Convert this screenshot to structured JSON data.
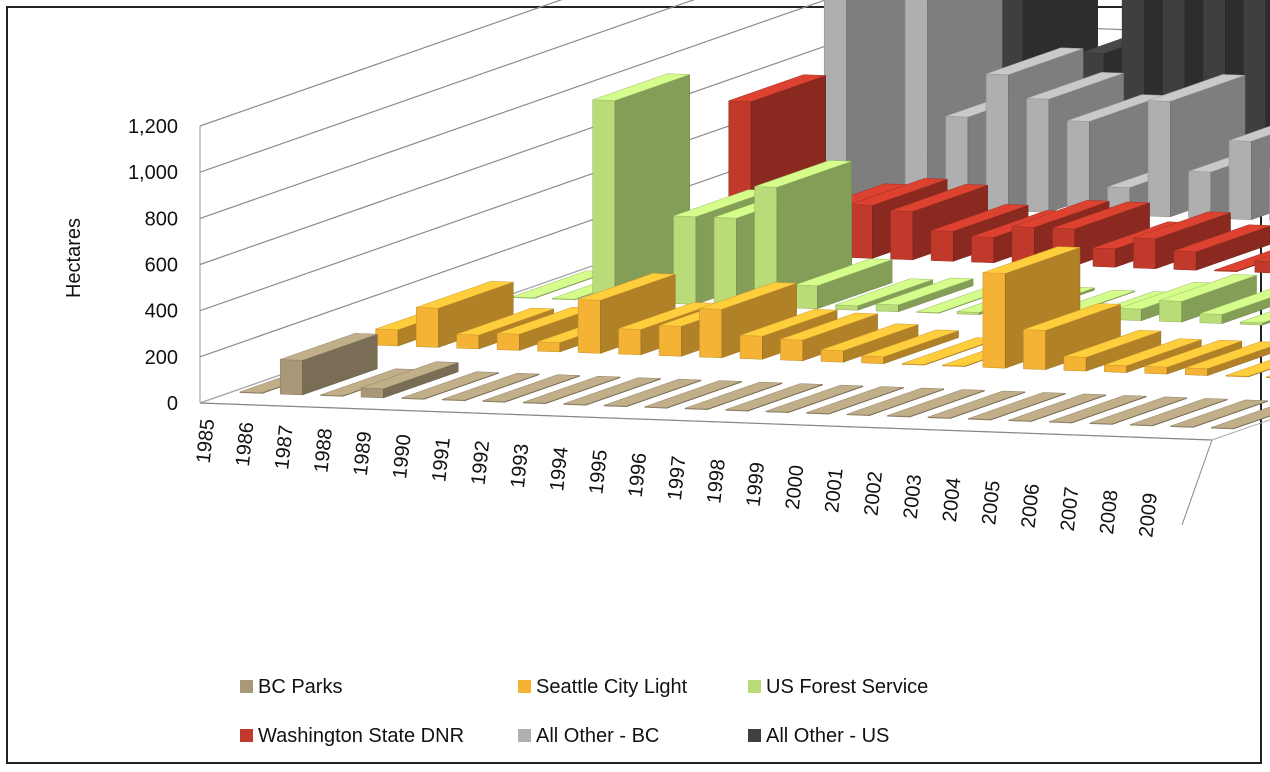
{
  "chart_data": {
    "type": "bar",
    "subtype": "3d-column",
    "title": "",
    "ylabel": "Hectares",
    "xlabel": "",
    "ylim": [
      0,
      1200
    ],
    "yticks": [
      0,
      200,
      400,
      600,
      800,
      1000,
      1200
    ],
    "ytick_labels": [
      "0",
      "200",
      "400",
      "600",
      "800",
      "1,000",
      "1,200"
    ],
    "grid": true,
    "legend_position": "bottom",
    "categories": [
      "1985",
      "1986",
      "1987",
      "1988",
      "1989",
      "1990",
      "1991",
      "1992",
      "1993",
      "1994",
      "1995",
      "1996",
      "1997",
      "1998",
      "1999",
      "2000",
      "2001",
      "2002",
      "2003",
      "2004",
      "2005",
      "2006",
      "2007",
      "2008",
      "2009"
    ],
    "series": [
      {
        "name": "BC Parks",
        "color": "#A89878",
        "values": [
          2,
          150,
          2,
          40,
          3,
          2,
          2,
          2,
          2,
          0,
          0,
          2,
          0,
          0,
          0,
          0,
          0,
          0,
          2,
          0,
          0,
          0,
          0,
          3,
          0
        ]
      },
      {
        "name": "Seattle City Light",
        "color": "#F5B335",
        "values": [
          70,
          170,
          60,
          70,
          40,
          230,
          110,
          130,
          210,
          100,
          90,
          50,
          30,
          0,
          0,
          410,
          170,
          60,
          30,
          30,
          30,
          0,
          0,
          20,
          20
        ]
      },
      {
        "name": "US Forest Service",
        "color": "#B9DC79",
        "values": [
          0,
          0,
          870,
          40,
          380,
          380,
          520,
          100,
          20,
          30,
          0,
          10,
          10,
          0,
          0,
          50,
          90,
          40,
          10,
          10,
          10,
          10,
          20,
          20,
          0
        ]
      },
      {
        "name": "Washington State DNR",
        "color": "#C0392B",
        "values": [
          0,
          0,
          660,
          30,
          200,
          230,
          210,
          130,
          110,
          160,
          160,
          80,
          130,
          80,
          0,
          50,
          60,
          20,
          60,
          60,
          40,
          220,
          80,
          170,
          30
        ]
      },
      {
        "name": "All Other - BC",
        "color": "#AFAFAF",
        "values": [
          0,
          1090,
          0,
          1160,
          400,
          590,
          490,
          400,
          120,
          500,
          200,
          340,
          220,
          20,
          30,
          200,
          20,
          240,
          280,
          400,
          320,
          420,
          400,
          430,
          160
        ]
      },
      {
        "name": "All Other - US",
        "color": "#3F3F3F",
        "values": [
          0,
          0,
          900,
          0,
          470,
          1120,
          810,
          820,
          1020,
          580,
          650,
          650,
          640,
          150,
          600,
          680,
          620,
          280,
          300,
          100,
          200,
          150,
          180,
          280,
          280
        ]
      }
    ]
  }
}
